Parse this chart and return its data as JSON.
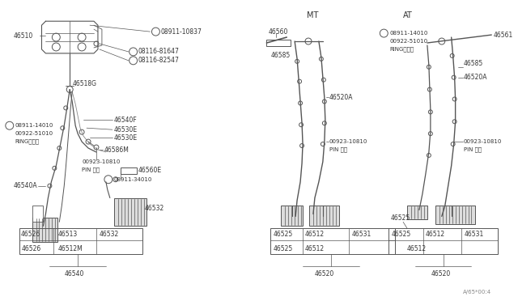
{
  "bg_color": "#ffffff",
  "line_color": "#555555",
  "text_color": "#333333",
  "fig_width": 6.4,
  "fig_height": 3.72,
  "dpi": 100,
  "watermark": "A/65*00:4",
  "section_MT": "MT",
  "section_AT": "AT"
}
